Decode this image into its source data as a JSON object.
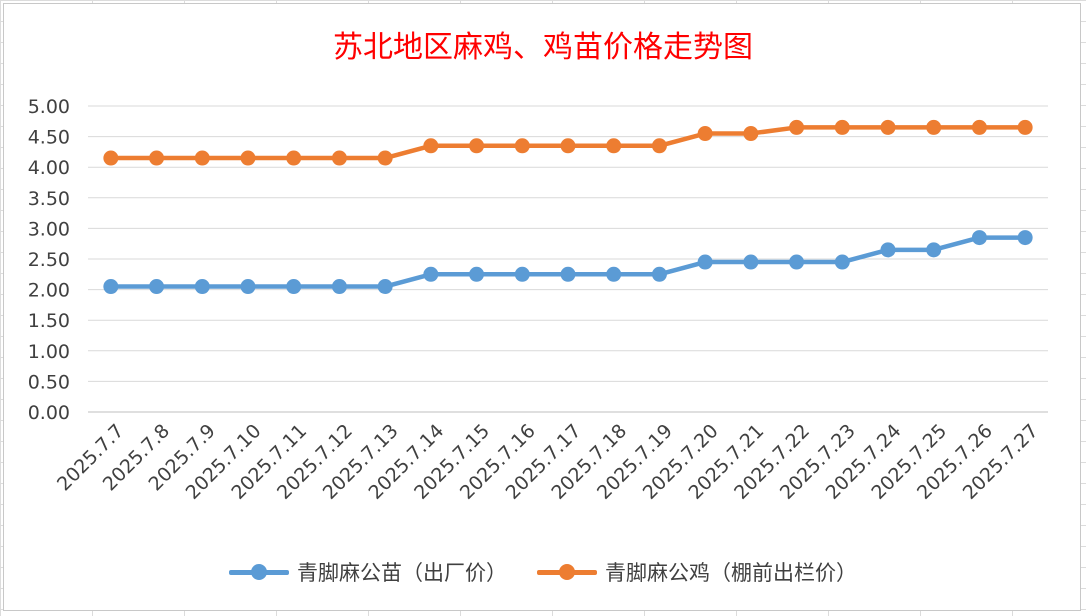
{
  "chart_data": {
    "type": "line",
    "title": "苏北地区麻鸡、鸡苗价格走势图",
    "xlabel": "",
    "ylabel": "",
    "ylim": [
      0,
      5
    ],
    "ytick_step": 0.5,
    "ytick_labels": [
      "0.00",
      "0.50",
      "1.00",
      "1.50",
      "2.00",
      "2.50",
      "3.00",
      "3.50",
      "4.00",
      "4.50",
      "5.00"
    ],
    "grid": true,
    "legend_position": "bottom",
    "categories": [
      "2025.7.7",
      "2025.7.8",
      "2025.7.9",
      "2025.7.10",
      "2025.7.11",
      "2025.7.12",
      "2025.7.13",
      "2025.7.14",
      "2025.7.15",
      "2025.7.16",
      "2025.7.17",
      "2025.7.18",
      "2025.7.19",
      "2025.7.20",
      "2025.7.21",
      "2025.7.22",
      "2025.7.23",
      "2025.7.24",
      "2025.7.25",
      "2025.7.26",
      "2025.7.27"
    ],
    "series": [
      {
        "name": "青脚麻公苗（出厂价）",
        "color": "#5b9bd5",
        "values": [
          2.05,
          2.05,
          2.05,
          2.05,
          2.05,
          2.05,
          2.05,
          2.25,
          2.25,
          2.25,
          2.25,
          2.25,
          2.25,
          2.45,
          2.45,
          2.45,
          2.45,
          2.65,
          2.65,
          2.85,
          2.85
        ]
      },
      {
        "name": "青脚麻公鸡（棚前出栏价）",
        "color": "#ed7d31",
        "values": [
          4.15,
          4.15,
          4.15,
          4.15,
          4.15,
          4.15,
          4.15,
          4.35,
          4.35,
          4.35,
          4.35,
          4.35,
          4.35,
          4.55,
          4.55,
          4.65,
          4.65,
          4.65,
          4.65,
          4.65,
          4.65
        ]
      }
    ]
  }
}
